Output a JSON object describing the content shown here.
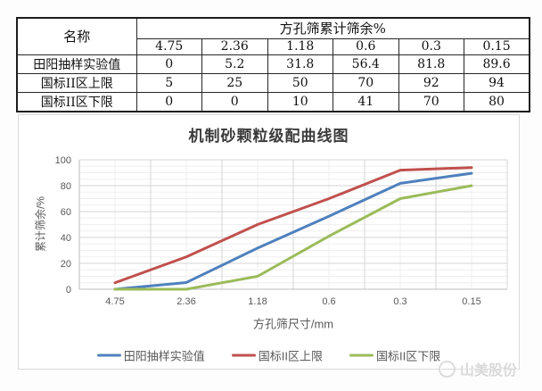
{
  "table": {
    "name_header": "名称",
    "group_header": "方孔筛累计筛余%",
    "sizes": [
      "4.75",
      "2.36",
      "1.18",
      "0.6",
      "0.3",
      "0.15"
    ],
    "rows": [
      {
        "label": "田阳抽样实验值",
        "values": [
          "0",
          "5.2",
          "31.8",
          "56.4",
          "81.8",
          "89.6"
        ]
      },
      {
        "label": "国标II区上限",
        "values": [
          "5",
          "25",
          "50",
          "70",
          "92",
          "94"
        ]
      },
      {
        "label": "国标II区下限",
        "values": [
          "0",
          "0",
          "10",
          "41",
          "70",
          "80"
        ]
      }
    ]
  },
  "chart_data": {
    "type": "line",
    "title": "机制砂颗粒级配曲线图",
    "xlabel": "方孔筛尺寸/mm",
    "ylabel": "累计筛余/%",
    "categories": [
      "4.75",
      "2.36",
      "1.18",
      "0.6",
      "0.3",
      "0.15"
    ],
    "series": [
      {
        "name": "田阳抽样实验值",
        "color": "#4F81BD",
        "values": [
          0,
          5.2,
          31.8,
          56.4,
          81.8,
          89.6
        ]
      },
      {
        "name": "国标II区上限",
        "color": "#C0504D",
        "values": [
          5,
          25,
          50,
          70,
          92,
          94
        ]
      },
      {
        "name": "国标II区下限",
        "color": "#9BBB59",
        "values": [
          0,
          0,
          10,
          41,
          70,
          80
        ]
      }
    ],
    "ylim": [
      0,
      100
    ],
    "y_major_step": 20,
    "y_minor_step": 5,
    "grid": true,
    "legend_position": "bottom",
    "grid_major_color": "#d6d6d6",
    "grid_minor_color": "#efefef",
    "axis_color": "#bdbdbd"
  },
  "watermark": {
    "text": "山美股份"
  }
}
